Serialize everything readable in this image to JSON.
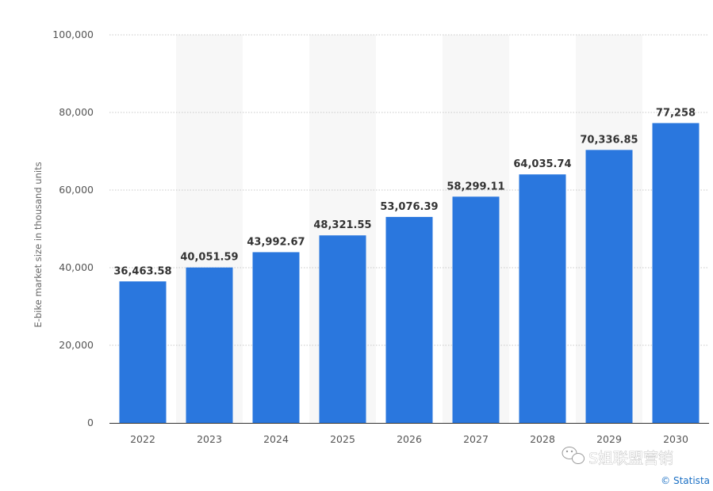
{
  "chart_data": {
    "type": "bar",
    "title": "",
    "xlabel": "",
    "ylabel": "E-bike market size in thousand units",
    "categories": [
      "2022",
      "2023",
      "2024",
      "2025",
      "2026",
      "2027",
      "2028",
      "2029",
      "2030"
    ],
    "values": [
      36463.58,
      40051.59,
      43992.67,
      48321.55,
      53076.39,
      58299.11,
      64035.74,
      70336.85,
      77258
    ],
    "data_labels": [
      "36,463.58",
      "40,051.59",
      "43,992.67",
      "48,321.55",
      "53,076.39",
      "58,299.11",
      "64,035.74",
      "70,336.85",
      "77,258"
    ],
    "ylim": [
      0,
      100000
    ],
    "yticks": [
      0,
      20000,
      40000,
      60000,
      80000,
      100000
    ],
    "ytick_labels": [
      "0",
      "20,000",
      "40,000",
      "60,000",
      "80,000",
      "100,000"
    ],
    "grid": true,
    "legend": "none",
    "bar_color": "#2a77de",
    "band_color": "#f7f7f7"
  },
  "credit": "© Statista",
  "watermark": "S姐联盟营销"
}
